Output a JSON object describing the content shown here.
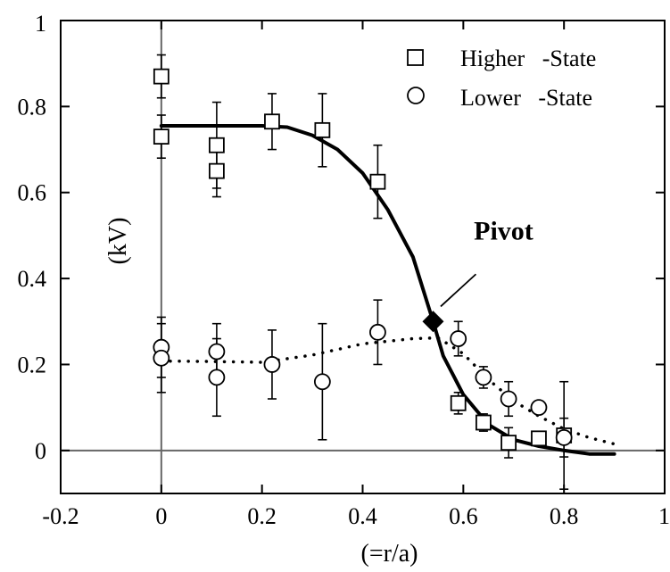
{
  "chart_data": {
    "type": "scatter",
    "xlabel": "(=r/a)",
    "ylabel": "(kV)",
    "xlim": [
      -0.2,
      1.0
    ],
    "ylim": [
      -0.1,
      1.0
    ],
    "x_ticks": [
      "-0.2",
      "0",
      "0.2",
      "0.4",
      "0.6",
      "0.8",
      "1"
    ],
    "y_ticks": [
      "0",
      "0.2",
      "0.4",
      "0.6",
      "0.8",
      "1"
    ],
    "x_tick_values": [
      -0.2,
      0,
      0.2,
      0.4,
      0.6,
      0.8,
      1.0
    ],
    "y_tick_values": [
      0,
      0.2,
      0.4,
      0.6,
      0.8,
      1.0
    ],
    "grid": false,
    "reference_lines": {
      "x": 0,
      "y": 0
    },
    "legend_position": "top-right",
    "series": [
      {
        "name": "Higher   -State",
        "marker": "square",
        "line_style": "solid",
        "points": [
          {
            "x": 0.0,
            "y": 0.87,
            "err": 0.05
          },
          {
            "x": 0.0,
            "y": 0.73,
            "err": 0.05
          },
          {
            "x": 0.11,
            "y": 0.71,
            "err": 0.1
          },
          {
            "x": 0.11,
            "y": 0.65,
            "err": 0.06
          },
          {
            "x": 0.22,
            "y": 0.765,
            "err": 0.065
          },
          {
            "x": 0.32,
            "y": 0.745,
            "err": 0.085
          },
          {
            "x": 0.43,
            "y": 0.625,
            "err": 0.085
          },
          {
            "x": 0.59,
            "y": 0.11,
            "err": 0.025
          },
          {
            "x": 0.64,
            "y": 0.065,
            "err": 0.02
          },
          {
            "x": 0.69,
            "y": 0.018,
            "err": 0.035
          },
          {
            "x": 0.75,
            "y": 0.028,
            "err": 0.015
          },
          {
            "x": 0.8,
            "y": 0.035,
            "err": 0.125
          }
        ],
        "curve": [
          [
            0.0,
            0.755
          ],
          [
            0.1,
            0.755
          ],
          [
            0.2,
            0.755
          ],
          [
            0.25,
            0.752
          ],
          [
            0.3,
            0.733
          ],
          [
            0.35,
            0.7
          ],
          [
            0.4,
            0.645
          ],
          [
            0.45,
            0.56
          ],
          [
            0.5,
            0.45
          ],
          [
            0.54,
            0.3
          ],
          [
            0.56,
            0.22
          ],
          [
            0.6,
            0.13
          ],
          [
            0.65,
            0.06
          ],
          [
            0.7,
            0.025
          ],
          [
            0.75,
            0.01
          ],
          [
            0.8,
            0.0
          ],
          [
            0.85,
            -0.008
          ],
          [
            0.9,
            -0.008
          ]
        ]
      },
      {
        "name": "Lower   -State",
        "marker": "circle",
        "line_style": "dotted",
        "points": [
          {
            "x": 0.0,
            "y": 0.24,
            "err": 0.07
          },
          {
            "x": 0.0,
            "y": 0.215,
            "err": 0.08
          },
          {
            "x": 0.11,
            "y": 0.23,
            "err": 0.065
          },
          {
            "x": 0.11,
            "y": 0.17,
            "err": 0.09
          },
          {
            "x": 0.22,
            "y": 0.2,
            "err": 0.08
          },
          {
            "x": 0.32,
            "y": 0.16,
            "err": 0.135
          },
          {
            "x": 0.43,
            "y": 0.275,
            "err": 0.075
          },
          {
            "x": 0.59,
            "y": 0.26,
            "err": 0.04
          },
          {
            "x": 0.64,
            "y": 0.17,
            "err": 0.025
          },
          {
            "x": 0.69,
            "y": 0.12,
            "err": 0.04
          },
          {
            "x": 0.75,
            "y": 0.1,
            "err": 0.01
          },
          {
            "x": 0.8,
            "y": 0.03,
            "err": 0.045
          }
        ],
        "curve": [
          [
            0.0,
            0.208
          ],
          [
            0.1,
            0.207
          ],
          [
            0.2,
            0.205
          ],
          [
            0.3,
            0.222
          ],
          [
            0.4,
            0.248
          ],
          [
            0.5,
            0.26
          ],
          [
            0.55,
            0.262
          ],
          [
            0.6,
            0.225
          ],
          [
            0.65,
            0.165
          ],
          [
            0.7,
            0.115
          ],
          [
            0.75,
            0.08
          ],
          [
            0.8,
            0.05
          ],
          [
            0.85,
            0.03
          ],
          [
            0.9,
            0.015
          ]
        ]
      }
    ],
    "annotations": [
      {
        "text": "Pivot",
        "point": {
          "x": 0.54,
          "y": 0.3
        },
        "marker": "filled-diamond",
        "label_at": {
          "x": 0.68,
          "y": 0.49
        },
        "leader_from": {
          "x": 0.625,
          "y": 0.41
        },
        "leader_to": {
          "x": 0.555,
          "y": 0.335
        }
      }
    ]
  }
}
